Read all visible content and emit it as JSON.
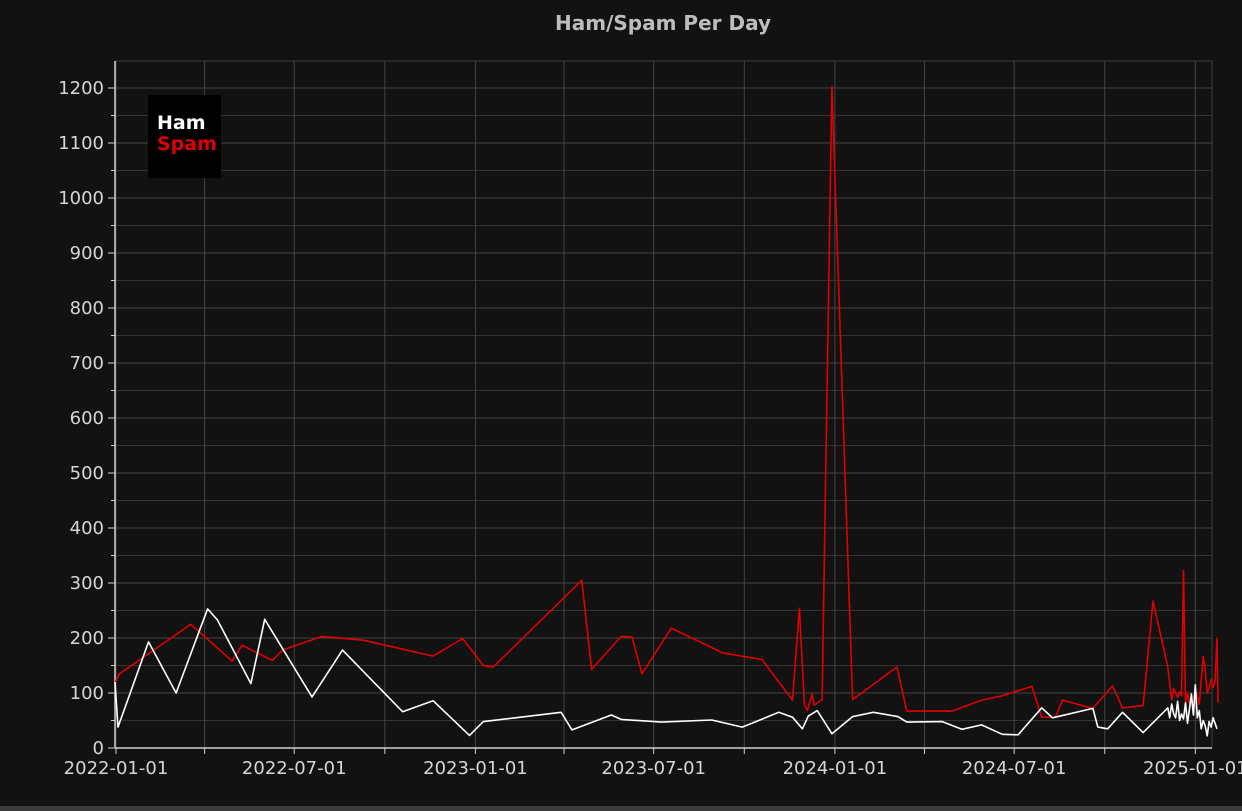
{
  "chart_data": {
    "type": "line",
    "title": "Ham/Spam Per Day",
    "xlabel": "",
    "ylabel": "",
    "xlim": [
      "2021-12-31",
      "2025-01-23"
    ],
    "ylim": [
      0,
      1250
    ],
    "y_ticks": [
      0,
      100,
      200,
      300,
      400,
      500,
      600,
      700,
      800,
      900,
      1000,
      1100,
      1200
    ],
    "x_ticks": [
      "2022-01-01",
      "2022-07-01",
      "2023-01-01",
      "2023-07-01",
      "2024-01-01",
      "2024-07-01",
      "2025-01-01"
    ],
    "grid": true,
    "legend_position": "top-left",
    "legend": [
      "Ham",
      "Spam"
    ],
    "series": [
      {
        "name": "Ham",
        "color": "#ffffff",
        "points": [
          [
            "2021-12-31",
            120
          ],
          [
            "2022-01-03",
            38
          ],
          [
            "2022-02-03",
            193
          ],
          [
            "2022-03-03",
            100
          ],
          [
            "2022-04-04",
            253
          ],
          [
            "2022-04-14",
            233
          ],
          [
            "2022-05-18",
            117
          ],
          [
            "2022-06-01",
            234
          ],
          [
            "2022-07-19",
            93
          ],
          [
            "2022-08-19",
            178
          ],
          [
            "2022-10-19",
            66
          ],
          [
            "2022-11-19",
            86
          ],
          [
            "2022-12-26",
            23
          ],
          [
            "2023-01-09",
            48
          ],
          [
            "2023-03-29",
            65
          ],
          [
            "2023-04-09",
            33
          ],
          [
            "2023-05-19",
            60
          ],
          [
            "2023-05-29",
            52
          ],
          [
            "2023-07-09",
            47
          ],
          [
            "2023-08-29",
            51
          ],
          [
            "2023-09-29",
            38
          ],
          [
            "2023-11-05",
            65
          ],
          [
            "2023-11-19",
            56
          ],
          [
            "2023-11-29",
            35
          ],
          [
            "2023-12-05",
            58
          ],
          [
            "2023-12-14",
            68
          ],
          [
            "2023-12-29",
            26
          ],
          [
            "2024-01-19",
            57
          ],
          [
            "2024-02-09",
            65
          ],
          [
            "2024-03-05",
            57
          ],
          [
            "2024-03-14",
            47
          ],
          [
            "2024-04-19",
            48
          ],
          [
            "2024-05-09",
            34
          ],
          [
            "2024-05-29",
            42
          ],
          [
            "2024-06-19",
            25
          ],
          [
            "2024-07-05",
            24
          ],
          [
            "2024-07-29",
            73
          ],
          [
            "2024-08-09",
            55
          ],
          [
            "2024-09-19",
            72
          ],
          [
            "2024-09-24",
            38
          ],
          [
            "2024-10-04",
            35
          ],
          [
            "2024-10-19",
            65
          ],
          [
            "2024-11-09",
            28
          ],
          [
            "2024-12-04",
            73
          ],
          [
            "2024-12-06",
            55
          ],
          [
            "2024-12-08",
            80
          ],
          [
            "2024-12-10",
            62
          ],
          [
            "2024-12-12",
            55
          ],
          [
            "2024-12-14",
            85
          ],
          [
            "2024-12-16",
            50
          ],
          [
            "2024-12-18",
            62
          ],
          [
            "2024-12-20",
            53
          ],
          [
            "2024-12-22",
            82
          ],
          [
            "2024-12-24",
            45
          ],
          [
            "2024-12-26",
            70
          ],
          [
            "2024-12-28",
            98
          ],
          [
            "2024-12-30",
            60
          ],
          [
            "2025-01-01",
            115
          ],
          [
            "2025-01-03",
            55
          ],
          [
            "2025-01-05",
            68
          ],
          [
            "2025-01-07",
            35
          ],
          [
            "2025-01-09",
            50
          ],
          [
            "2025-01-11",
            40
          ],
          [
            "2025-01-13",
            22
          ],
          [
            "2025-01-15",
            48
          ],
          [
            "2025-01-17",
            38
          ],
          [
            "2025-01-19",
            55
          ],
          [
            "2025-01-21",
            45
          ],
          [
            "2025-01-23",
            35
          ]
        ]
      },
      {
        "name": "Spam",
        "color": "#e00000",
        "points": [
          [
            "2021-12-31",
            118
          ],
          [
            "2022-01-04",
            134
          ],
          [
            "2022-03-18",
            225
          ],
          [
            "2022-04-29",
            158
          ],
          [
            "2022-05-09",
            187
          ],
          [
            "2022-06-09",
            159
          ],
          [
            "2022-06-19",
            178
          ],
          [
            "2022-07-29",
            203
          ],
          [
            "2022-09-09",
            196
          ],
          [
            "2022-11-19",
            167
          ],
          [
            "2022-12-19",
            199
          ],
          [
            "2023-01-09",
            150
          ],
          [
            "2023-01-19",
            147
          ],
          [
            "2023-04-19",
            305
          ],
          [
            "2023-04-29",
            143
          ],
          [
            "2023-05-29",
            203
          ],
          [
            "2023-06-09",
            202
          ],
          [
            "2023-06-19",
            135
          ],
          [
            "2023-07-19",
            218
          ],
          [
            "2023-09-09",
            173
          ],
          [
            "2023-10-19",
            161
          ],
          [
            "2023-11-19",
            87
          ],
          [
            "2023-11-26",
            254
          ],
          [
            "2023-12-01",
            79
          ],
          [
            "2023-12-04",
            68
          ],
          [
            "2023-12-09",
            98
          ],
          [
            "2023-12-11",
            78
          ],
          [
            "2023-12-19",
            88
          ],
          [
            "2023-12-29",
            1203
          ],
          [
            "2024-01-19",
            88
          ],
          [
            "2024-03-04",
            147
          ],
          [
            "2024-03-14",
            67
          ],
          [
            "2024-04-29",
            67
          ],
          [
            "2024-05-29",
            87
          ],
          [
            "2024-06-19",
            95
          ],
          [
            "2024-07-19",
            112
          ],
          [
            "2024-07-29",
            56
          ],
          [
            "2024-08-12",
            56
          ],
          [
            "2024-08-19",
            87
          ],
          [
            "2024-09-19",
            72
          ],
          [
            "2024-10-09",
            113
          ],
          [
            "2024-10-19",
            73
          ],
          [
            "2024-11-09",
            77
          ],
          [
            "2024-11-19",
            267
          ],
          [
            "2024-12-04",
            147
          ],
          [
            "2024-12-08",
            88
          ],
          [
            "2024-12-10",
            108
          ],
          [
            "2024-12-12",
            100
          ],
          [
            "2024-12-14",
            92
          ],
          [
            "2024-12-16",
            102
          ],
          [
            "2024-12-18",
            95
          ],
          [
            "2024-12-20",
            323
          ],
          [
            "2024-12-22",
            78
          ],
          [
            "2024-12-24",
            100
          ],
          [
            "2024-12-26",
            82
          ],
          [
            "2024-12-28",
            90
          ],
          [
            "2024-12-30",
            62
          ],
          [
            "2025-01-01",
            108
          ],
          [
            "2025-01-05",
            80
          ],
          [
            "2025-01-09",
            166
          ],
          [
            "2025-01-11",
            143
          ],
          [
            "2025-01-13",
            100
          ],
          [
            "2025-01-15",
            108
          ],
          [
            "2025-01-17",
            125
          ],
          [
            "2025-01-19",
            110
          ],
          [
            "2025-01-21",
            120
          ],
          [
            "2025-01-23",
            200
          ],
          [
            "2025-01-24",
            85
          ],
          [
            "2025-01-25",
            83
          ]
        ]
      }
    ]
  }
}
